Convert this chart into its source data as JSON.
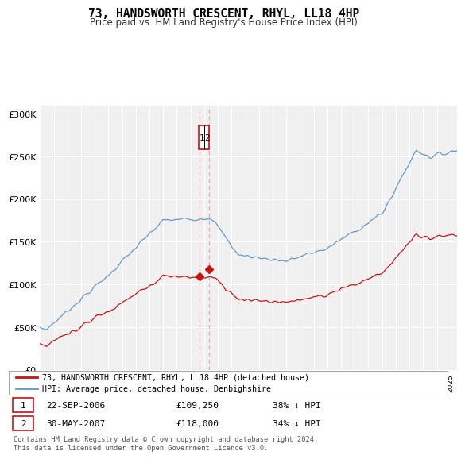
{
  "title": "73, HANDSWORTH CRESCENT, RHYL, LL18 4HP",
  "subtitle": "Price paid vs. HM Land Registry's House Price Index (HPI)",
  "legend_line1": "73, HANDSWORTH CRESCENT, RHYL, LL18 4HP (detached house)",
  "legend_line2": "HPI: Average price, detached house, Denbighshire",
  "sale1_date": "22-SEP-2006",
  "sale1_price": "£109,250",
  "sale1_hpi": "38% ↓ HPI",
  "sale2_date": "30-MAY-2007",
  "sale2_price": "£118,000",
  "sale2_hpi": "34% ↓ HPI",
  "footer": "Contains HM Land Registry data © Crown copyright and database right 2024.\nThis data is licensed under the Open Government Licence v3.0.",
  "hpi_color": "#6699cc",
  "price_color": "#cc1111",
  "vline_color": "#e88888",
  "annotation_box_color": "#cc1111",
  "ylim": [
    0,
    310000
  ],
  "background_color": "#ffffff",
  "plot_bg_color": "#f0f0f0",
  "grid_color": "#ffffff",
  "sale1_t": 2006.667,
  "sale2_t": 2007.333,
  "sale1_value": 109250,
  "sale2_value": 118000
}
